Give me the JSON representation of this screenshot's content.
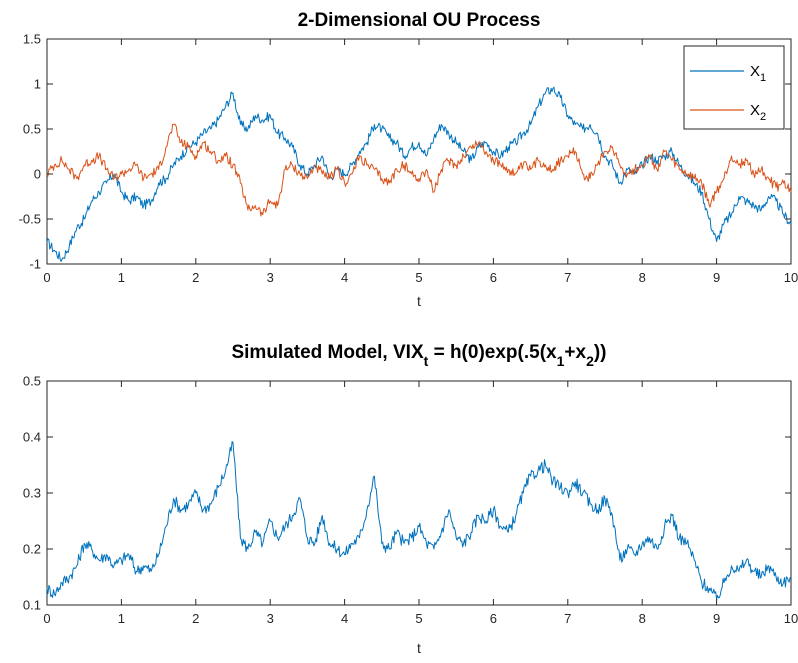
{
  "chart_data": [
    {
      "type": "line",
      "title": "2-Dimensional OU Process",
      "xlabel": "t",
      "ylabel": "",
      "xlim": [
        0,
        10
      ],
      "ylim": [
        -1,
        1.5
      ],
      "xticks": [
        "0",
        "1",
        "2",
        "3",
        "4",
        "5",
        "6",
        "7",
        "8",
        "9",
        "10"
      ],
      "yticks": [
        "-1",
        "-0.5",
        "0",
        "0.5",
        "1",
        "1.5"
      ],
      "grid": false,
      "legend_position": "top-right",
      "series": [
        {
          "name": "X",
          "subscript": "1",
          "color": "#0072BD",
          "x": [
            0,
            0.1,
            0.2,
            0.3,
            0.4,
            0.5,
            0.6,
            0.7,
            0.8,
            0.9,
            1.0,
            1.1,
            1.2,
            1.3,
            1.4,
            1.5,
            1.6,
            1.7,
            1.8,
            1.9,
            2.0,
            2.1,
            2.2,
            2.3,
            2.4,
            2.5,
            2.6,
            2.7,
            2.8,
            2.9,
            3.0,
            3.1,
            3.2,
            3.3,
            3.4,
            3.5,
            3.6,
            3.7,
            3.8,
            3.9,
            4.0,
            4.1,
            4.2,
            4.3,
            4.4,
            4.5,
            4.6,
            4.7,
            4.8,
            4.9,
            5.0,
            5.1,
            5.2,
            5.3,
            5.4,
            5.5,
            5.6,
            5.7,
            5.8,
            5.9,
            6.0,
            6.1,
            6.2,
            6.3,
            6.4,
            6.5,
            6.6,
            6.7,
            6.8,
            6.9,
            7.0,
            7.1,
            7.2,
            7.3,
            7.4,
            7.5,
            7.6,
            7.7,
            7.8,
            7.9,
            8.0,
            8.1,
            8.2,
            8.3,
            8.4,
            8.5,
            8.6,
            8.7,
            8.8,
            8.9,
            9.0,
            9.1,
            9.2,
            9.3,
            9.4,
            9.5,
            9.6,
            9.7,
            9.8,
            9.9,
            10.0
          ],
          "values": [
            -0.75,
            -0.85,
            -0.95,
            -0.8,
            -0.6,
            -0.5,
            -0.3,
            -0.2,
            -0.1,
            0.0,
            -0.2,
            -0.3,
            -0.25,
            -0.35,
            -0.3,
            -0.1,
            -0.05,
            0.1,
            0.2,
            0.3,
            0.35,
            0.45,
            0.5,
            0.6,
            0.75,
            0.9,
            0.55,
            0.5,
            0.65,
            0.6,
            0.65,
            0.45,
            0.4,
            0.3,
            0.1,
            0.0,
            0.1,
            0.2,
            -0.05,
            0.05,
            0.0,
            0.1,
            0.25,
            0.35,
            0.55,
            0.5,
            0.4,
            0.35,
            0.2,
            0.3,
            0.35,
            0.2,
            0.4,
            0.55,
            0.45,
            0.35,
            0.25,
            0.15,
            0.3,
            0.35,
            0.25,
            0.2,
            0.3,
            0.35,
            0.45,
            0.55,
            0.75,
            0.9,
            0.95,
            0.85,
            0.65,
            0.55,
            0.5,
            0.55,
            0.45,
            0.2,
            0.1,
            -0.1,
            0.05,
            0.0,
            0.1,
            0.2,
            0.15,
            0.2,
            0.25,
            0.1,
            0.0,
            -0.1,
            -0.2,
            -0.5,
            -0.75,
            -0.55,
            -0.45,
            -0.25,
            -0.3,
            -0.35,
            -0.4,
            -0.25,
            -0.3,
            -0.45,
            -0.55
          ]
        },
        {
          "name": "X",
          "subscript": "2",
          "color": "#D95319",
          "x": [
            0,
            0.1,
            0.2,
            0.3,
            0.4,
            0.5,
            0.6,
            0.7,
            0.8,
            0.9,
            1.0,
            1.1,
            1.2,
            1.3,
            1.4,
            1.5,
            1.6,
            1.7,
            1.8,
            1.9,
            2.0,
            2.1,
            2.2,
            2.3,
            2.4,
            2.5,
            2.6,
            2.7,
            2.8,
            2.9,
            3.0,
            3.1,
            3.2,
            3.3,
            3.4,
            3.5,
            3.6,
            3.7,
            3.8,
            3.9,
            4.0,
            4.1,
            4.2,
            4.3,
            4.4,
            4.5,
            4.6,
            4.7,
            4.8,
            4.9,
            5.0,
            5.1,
            5.2,
            5.3,
            5.4,
            5.5,
            5.6,
            5.7,
            5.8,
            5.9,
            6.0,
            6.1,
            6.2,
            6.3,
            6.4,
            6.5,
            6.6,
            6.7,
            6.8,
            6.9,
            7.0,
            7.1,
            7.2,
            7.3,
            7.4,
            7.5,
            7.6,
            7.7,
            7.8,
            7.9,
            8.0,
            8.1,
            8.2,
            8.3,
            8.4,
            8.5,
            8.6,
            8.7,
            8.8,
            8.9,
            9.0,
            9.1,
            9.2,
            9.3,
            9.4,
            9.5,
            9.6,
            9.7,
            9.8,
            9.9,
            10.0
          ],
          "values": [
            0.0,
            0.1,
            0.15,
            0.05,
            -0.05,
            0.1,
            0.15,
            0.2,
            0.05,
            -0.05,
            0.0,
            0.05,
            0.1,
            -0.05,
            0.0,
            0.05,
            0.3,
            0.55,
            0.35,
            0.3,
            0.2,
            0.35,
            0.25,
            0.15,
            0.2,
            0.1,
            -0.1,
            -0.4,
            -0.35,
            -0.45,
            -0.3,
            -0.35,
            0.05,
            0.1,
            0.0,
            -0.05,
            0.1,
            0.0,
            -0.05,
            0.05,
            -0.1,
            0.0,
            0.2,
            0.1,
            0.05,
            -0.05,
            -0.1,
            0.05,
            0.1,
            0.0,
            -0.05,
            0.05,
            -0.2,
            0.05,
            0.15,
            0.1,
            0.2,
            0.3,
            0.35,
            0.25,
            0.15,
            0.1,
            0.05,
            0.0,
            0.1,
            0.05,
            0.15,
            0.1,
            0.05,
            0.15,
            0.2,
            0.25,
            0.0,
            -0.05,
            0.1,
            0.25,
            0.3,
            0.1,
            0.0,
            0.05,
            0.1,
            0.2,
            0.05,
            0.25,
            0.15,
            0.05,
            0.0,
            -0.05,
            -0.1,
            -0.35,
            -0.2,
            -0.05,
            0.2,
            0.1,
            0.15,
            0.0,
            0.05,
            -0.05,
            -0.15,
            -0.1,
            -0.2
          ]
        }
      ]
    },
    {
      "type": "line",
      "title": "Simulated Model, VIX",
      "title_sub": "t",
      "title_rest": " = h(0)exp(.5(x",
      "title_sub2": "1",
      "title_plus": "+x",
      "title_sub3": "2",
      "title_end": "))",
      "xlabel": "t",
      "ylabel": "",
      "xlim": [
        0,
        10
      ],
      "ylim": [
        0.1,
        0.5
      ],
      "xticks": [
        "0",
        "1",
        "2",
        "3",
        "4",
        "5",
        "6",
        "7",
        "8",
        "9",
        "10"
      ],
      "yticks": [
        "0.1",
        "0.2",
        "0.3",
        "0.4",
        "0.5"
      ],
      "grid": false,
      "series": [
        {
          "color": "#0072BD",
          "x": [
            0,
            0.1,
            0.2,
            0.3,
            0.4,
            0.5,
            0.6,
            0.7,
            0.8,
            0.9,
            1.0,
            1.1,
            1.2,
            1.3,
            1.4,
            1.5,
            1.6,
            1.7,
            1.8,
            1.9,
            2.0,
            2.1,
            2.2,
            2.3,
            2.4,
            2.5,
            2.6,
            2.7,
            2.8,
            2.9,
            3.0,
            3.1,
            3.2,
            3.3,
            3.4,
            3.5,
            3.6,
            3.7,
            3.8,
            3.9,
            4.0,
            4.1,
            4.2,
            4.3,
            4.4,
            4.5,
            4.6,
            4.7,
            4.8,
            4.9,
            5.0,
            5.1,
            5.2,
            5.3,
            5.4,
            5.5,
            5.6,
            5.7,
            5.8,
            5.9,
            6.0,
            6.1,
            6.2,
            6.3,
            6.4,
            6.5,
            6.6,
            6.7,
            6.8,
            6.9,
            7.0,
            7.1,
            7.2,
            7.3,
            7.4,
            7.5,
            7.6,
            7.7,
            7.8,
            7.9,
            8.0,
            8.1,
            8.2,
            8.3,
            8.4,
            8.5,
            8.6,
            8.7,
            8.8,
            8.9,
            9.0,
            9.1,
            9.2,
            9.3,
            9.4,
            9.5,
            9.6,
            9.7,
            9.8,
            9.9,
            10.0
          ],
          "values": [
            0.13,
            0.12,
            0.14,
            0.15,
            0.17,
            0.21,
            0.2,
            0.18,
            0.19,
            0.17,
            0.18,
            0.19,
            0.16,
            0.17,
            0.16,
            0.19,
            0.24,
            0.29,
            0.27,
            0.28,
            0.3,
            0.27,
            0.28,
            0.31,
            0.34,
            0.39,
            0.22,
            0.2,
            0.23,
            0.21,
            0.25,
            0.22,
            0.24,
            0.26,
            0.29,
            0.22,
            0.21,
            0.26,
            0.21,
            0.2,
            0.19,
            0.21,
            0.22,
            0.27,
            0.33,
            0.21,
            0.2,
            0.23,
            0.21,
            0.22,
            0.24,
            0.21,
            0.2,
            0.23,
            0.27,
            0.22,
            0.21,
            0.23,
            0.26,
            0.25,
            0.27,
            0.24,
            0.23,
            0.26,
            0.3,
            0.33,
            0.34,
            0.35,
            0.32,
            0.31,
            0.3,
            0.32,
            0.3,
            0.28,
            0.27,
            0.29,
            0.26,
            0.18,
            0.2,
            0.19,
            0.21,
            0.22,
            0.2,
            0.24,
            0.26,
            0.22,
            0.21,
            0.18,
            0.14,
            0.13,
            0.11,
            0.14,
            0.17,
            0.16,
            0.18,
            0.16,
            0.15,
            0.17,
            0.15,
            0.14,
            0.15
          ]
        }
      ]
    }
  ]
}
